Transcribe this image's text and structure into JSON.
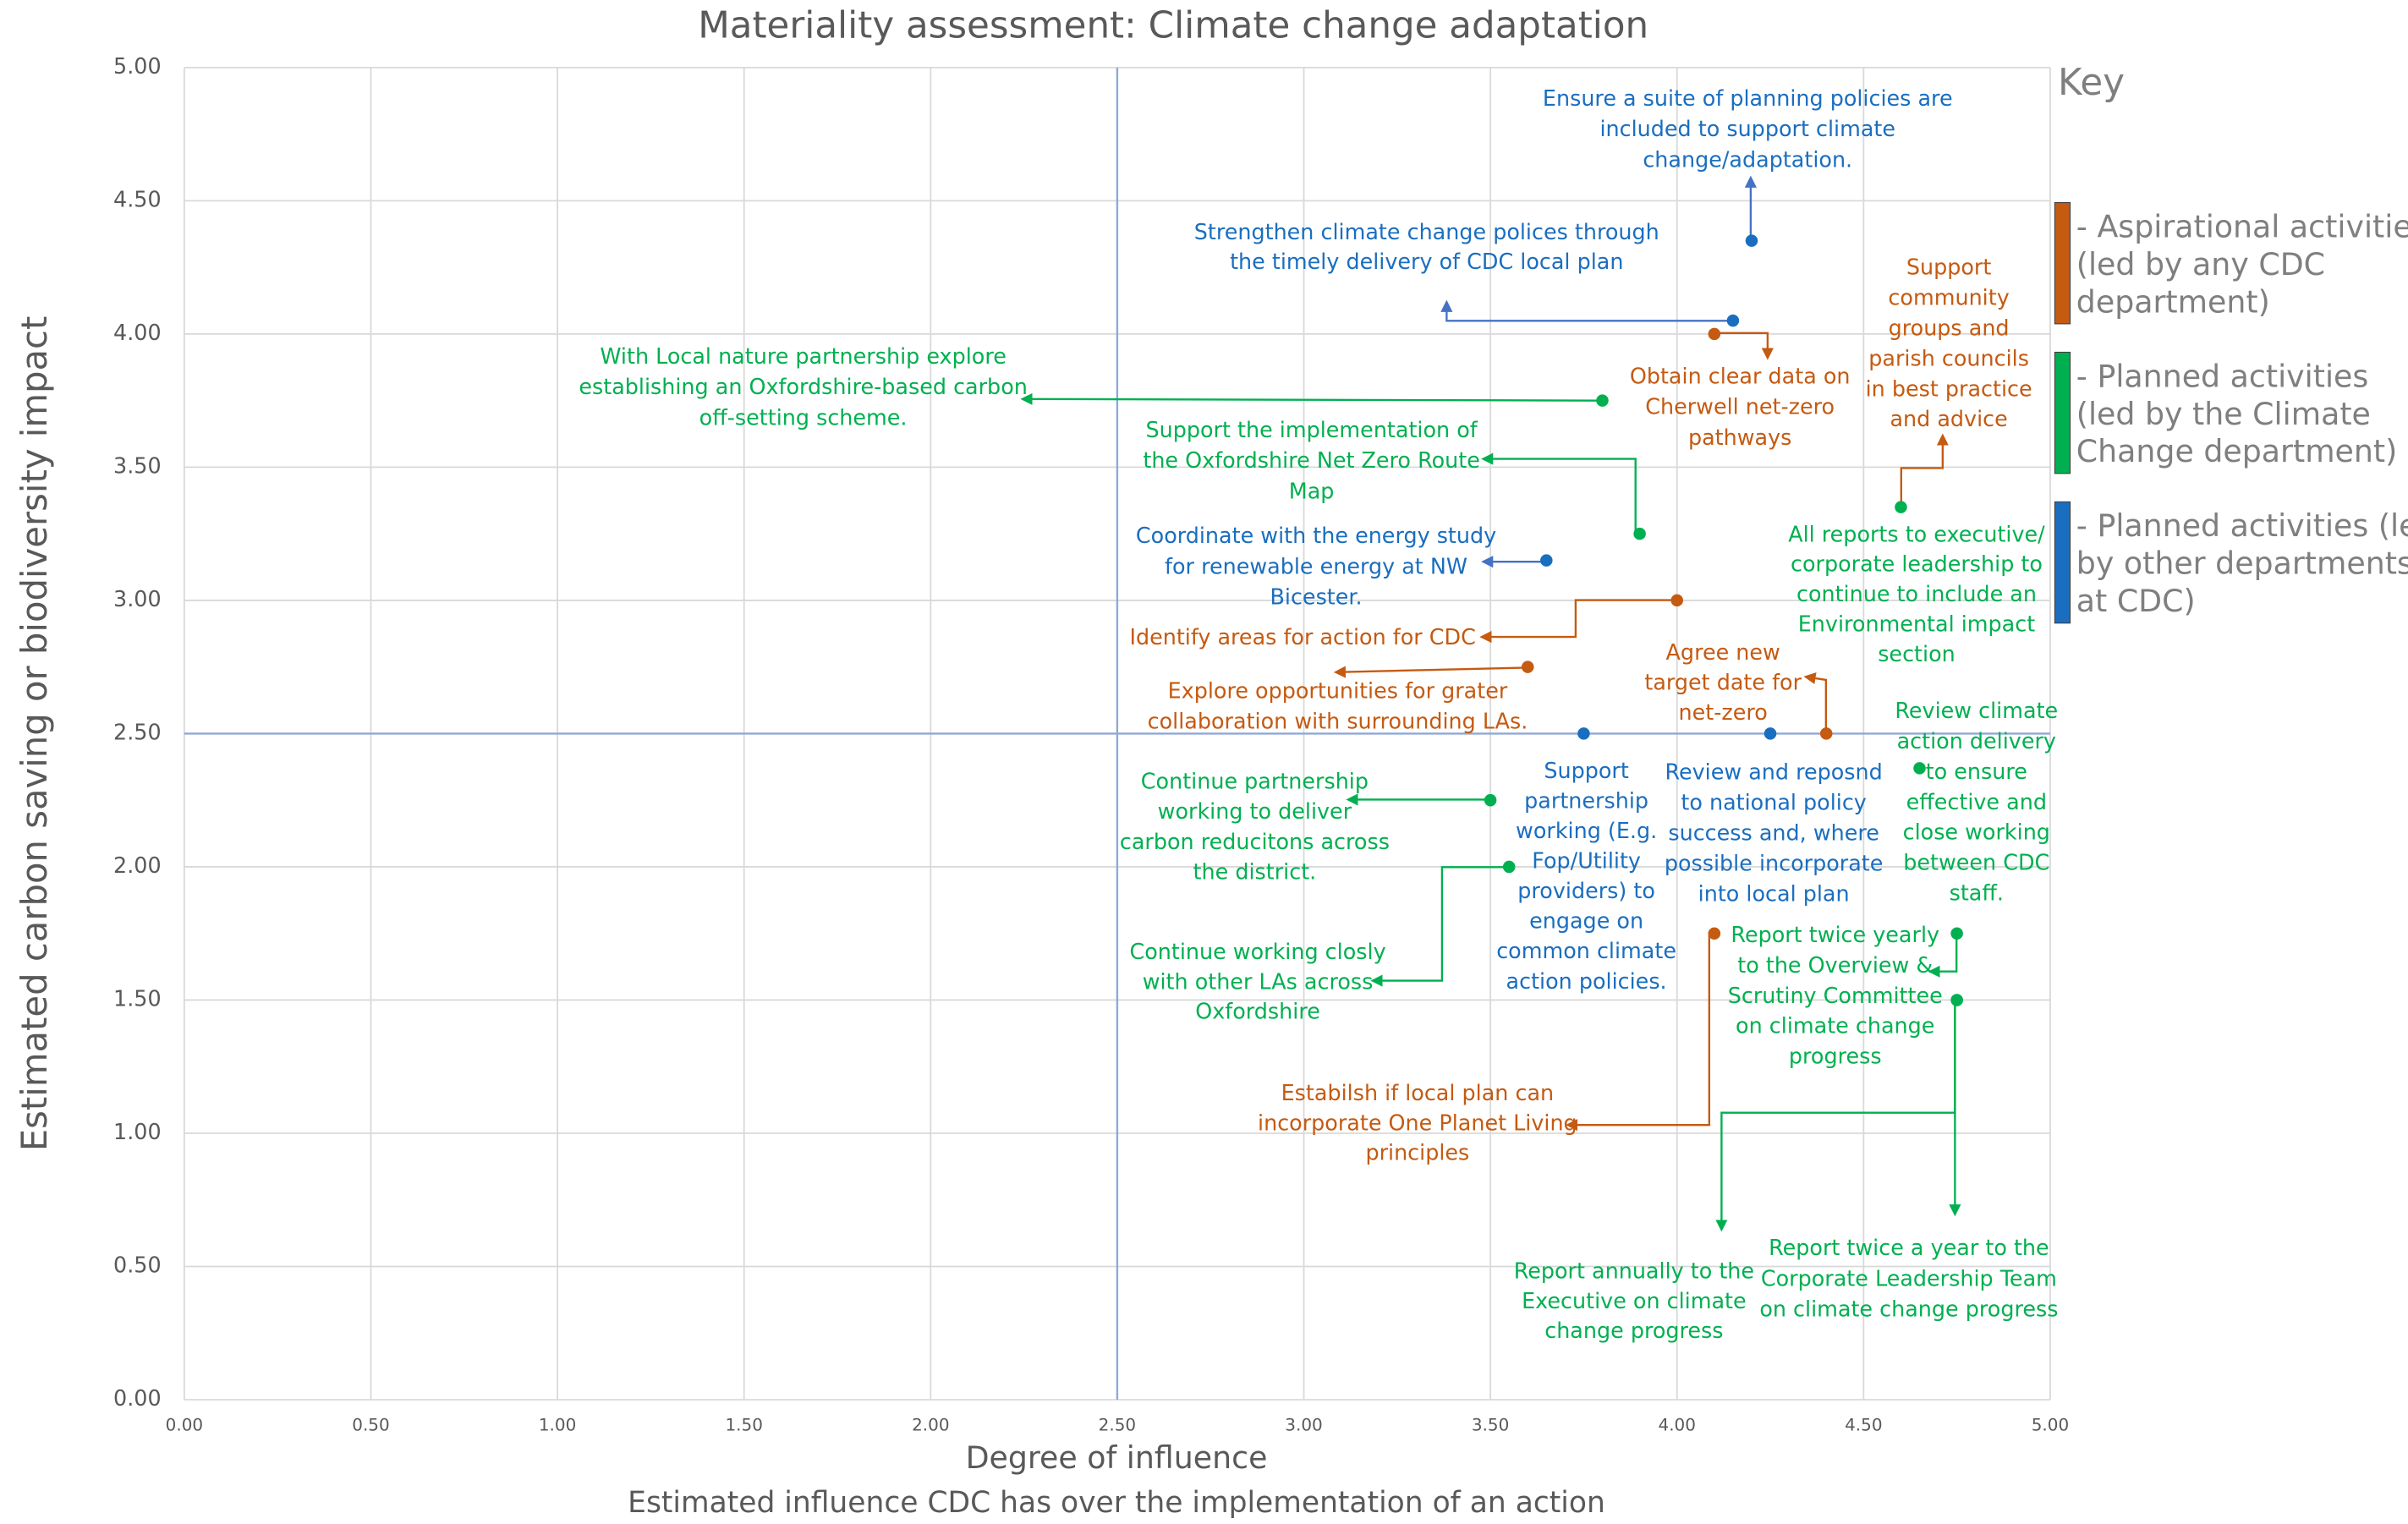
{
  "chart_data": {
    "type": "scatter",
    "title": "Materiality assessment: Climate change adaptation",
    "xlabel": "Degree of influence",
    "xlabel_sub": "Estimated influence CDC has over the implementation of an action",
    "ylabel": "Estimated carbon saving or biodiversity impact",
    "xlim": [
      0,
      5
    ],
    "ylim": [
      0,
      5
    ],
    "xticks": [
      {
        "value": 0,
        "label": "0.00"
      },
      {
        "value": 0.5,
        "label": "0.50"
      },
      {
        "value": 1,
        "label": "1.00"
      },
      {
        "value": 1.5,
        "label": "1.50"
      },
      {
        "value": 2,
        "label": "2.00"
      },
      {
        "value": 2.5,
        "label": "2.50"
      },
      {
        "value": 3,
        "label": "3.00"
      },
      {
        "value": 3.5,
        "label": "3.50"
      },
      {
        "value": 4,
        "label": "4.00"
      },
      {
        "value": 4.5,
        "label": "4.50"
      },
      {
        "value": 5,
        "label": "5.00"
      }
    ],
    "yticks": [
      {
        "value": 0,
        "label": "0.00"
      },
      {
        "value": 0.5,
        "label": "0.50"
      },
      {
        "value": 1,
        "label": "1.00"
      },
      {
        "value": 1.5,
        "label": "1.50"
      },
      {
        "value": 2,
        "label": "2.00"
      },
      {
        "value": 2.5,
        "label": "2.50"
      },
      {
        "value": 3,
        "label": "3.00"
      },
      {
        "value": 3.5,
        "label": "3.50"
      },
      {
        "value": 4,
        "label": "4.00"
      },
      {
        "value": 4.5,
        "label": "4.50"
      },
      {
        "value": 5,
        "label": "5.00"
      }
    ],
    "grid": true,
    "reference_lines": {
      "x": 2.5,
      "y": 2.5
    },
    "legend_title": "Key",
    "legend_position": "right",
    "series": [
      {
        "name": [
          "- Aspirational activities",
          "(led by any CDC",
          "department)"
        ],
        "color": "#c55a11",
        "x": [
          4.1,
          4.0,
          3.6,
          4.4,
          4.1
        ],
        "y": [
          4.0,
          3.0,
          2.75,
          2.5,
          1.75
        ],
        "labels": [
          [
            "Obtain clear data on",
            "Cherwell net-zero",
            "pathways"
          ],
          [
            "Identify areas for action for CDC"
          ],
          [
            "Explore opportunities for grater",
            "collaboration with surrounding LAs."
          ],
          [
            "Agree new",
            "target date for",
            "net-zero"
          ],
          [
            "Estabilsh if local plan can",
            "incorporate One Planet Living",
            "principles"
          ]
        ]
      },
      {
        "name": [
          "- Planned activities",
          "(led by the Climate",
          "Change department)"
        ],
        "color": "#00b050",
        "x": [
          3.8,
          3.9,
          4.6,
          4.65,
          3.5,
          3.55,
          4.75,
          4.75,
          4.75
        ],
        "y": [
          3.75,
          3.25,
          3.35,
          2.37,
          2.25,
          2.0,
          1.75,
          1.5,
          1.5
        ],
        "labels": [
          [
            "With Local nature partnership explore",
            "establishing an Oxfordshire-based carbon",
            "off-setting scheme."
          ],
          [
            "Support the implementation of",
            "the Oxfordshire Net Zero Route",
            "Map"
          ],
          [
            "All reports to executive/",
            "corporate leadership to",
            "continue to include an",
            "Environmental impact",
            "section"
          ],
          [
            "Review climate",
            "action delivery",
            "to ensure",
            "effective and",
            "close working",
            "between CDC",
            "staff."
          ],
          [
            "Continue partnership",
            "working to deliver",
            "carbon reducitons across",
            "the district."
          ],
          [
            "Continue working closly",
            "with other LAs across",
            "Oxfordshire"
          ],
          [
            "Report twice yearly",
            "to the Overview &",
            "Scrutiny Committee",
            "on climate change",
            "progress"
          ],
          [
            "Report annually to the",
            "Executive on climate",
            "change progress"
          ],
          [
            "Report twice a year to the",
            "Corporate Leadership Team",
            "on climate change progress"
          ]
        ]
      },
      {
        "name": [
          "- Planned activities (led",
          "by other departments",
          "at CDC)"
        ],
        "color": "#1a6ec0",
        "x": [
          4.2,
          4.15,
          3.65,
          3.75,
          4.25
        ],
        "y": [
          4.35,
          4.05,
          3.15,
          2.5,
          2.5
        ],
        "labels": [
          [
            "Ensure a suite of planning policies are",
            "included to support climate",
            "change/adaptation."
          ],
          [
            "Strengthen climate change polices through",
            "the timely delivery of CDC local plan"
          ],
          [
            "Coordinate with the energy study",
            "for renewable energy at NW",
            "Bicester."
          ],
          [
            "Support",
            "partnership",
            "working (E.g.",
            "Fop/Utility",
            "providers) to",
            "engage on",
            "common climate",
            "action policies."
          ],
          [
            "Review and reposnd",
            "to national policy",
            "success and, where",
            "possible incorporate",
            "into local plan"
          ]
        ]
      }
    ],
    "annotations": [
      {
        "text": [
          "Support",
          "community",
          "groups and",
          "parish councils",
          "in best practice",
          "and advice"
        ],
        "color": "#c55a11"
      }
    ]
  }
}
